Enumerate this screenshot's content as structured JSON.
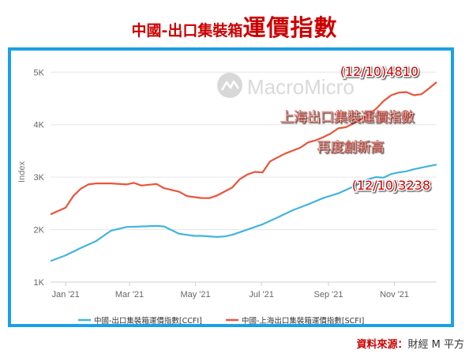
{
  "header": {
    "title_small": "中國-出口集裝箱",
    "title_large": "運價指數"
  },
  "watermark": {
    "text": "MacroMicro"
  },
  "source": {
    "label": "資料來源：",
    "value": "財經 M 平方"
  },
  "annotations": {
    "scfi_value": "(12/10)4810",
    "scfi_name": "上海出口集裝運價指數",
    "scfi_note": "再度創新高",
    "ccfi_value": "(12/10)3238"
  },
  "colors": {
    "ccfi": "#44b4dd",
    "scfi": "#e8553a",
    "frame": "#1aa0e6",
    "title": "#cc0000",
    "annotation_text": "#ffffff",
    "annotation_value": "#cc0000"
  },
  "chart_data": {
    "type": "line",
    "ylabel": "Index",
    "ylim": [
      1000,
      5200
    ],
    "yticks": [
      1000,
      2000,
      3000,
      4000,
      5000
    ],
    "ytick_labels": [
      "1K",
      "2K",
      "3K",
      "4K",
      "5K"
    ],
    "xlim": [
      "2020-12-18",
      "2021-12-10"
    ],
    "xticks": [
      "2021-01-01",
      "2021-03-01",
      "2021-05-01",
      "2021-07-01",
      "2021-09-01",
      "2021-11-01"
    ],
    "xtick_labels": [
      "Jan '21",
      "Mar '21",
      "May '21",
      "Jul '21",
      "Sep '21",
      "Nov '21"
    ],
    "grid": true,
    "legend_position": "bottom",
    "series": [
      {
        "name": "中國-出口集裝箱運價指數[CCFI]",
        "points": [
          [
            "2020-12-18",
            1400
          ],
          [
            "2021-01-01",
            1510
          ],
          [
            "2021-01-15",
            1650
          ],
          [
            "2021-01-29",
            1780
          ],
          [
            "2021-02-05",
            1880
          ],
          [
            "2021-02-12",
            1980
          ],
          [
            "2021-02-26",
            2050
          ],
          [
            "2021-03-12",
            2060
          ],
          [
            "2021-03-26",
            2070
          ],
          [
            "2021-04-02",
            2060
          ],
          [
            "2021-04-09",
            1990
          ],
          [
            "2021-04-16",
            1920
          ],
          [
            "2021-04-23",
            1900
          ],
          [
            "2021-04-30",
            1880
          ],
          [
            "2021-05-07",
            1880
          ],
          [
            "2021-05-21",
            1860
          ],
          [
            "2021-05-28",
            1870
          ],
          [
            "2021-06-04",
            1900
          ],
          [
            "2021-06-18",
            2000
          ],
          [
            "2021-07-02",
            2100
          ],
          [
            "2021-07-16",
            2230
          ],
          [
            "2021-07-30",
            2370
          ],
          [
            "2021-08-13",
            2480
          ],
          [
            "2021-08-27",
            2600
          ],
          [
            "2021-09-10",
            2690
          ],
          [
            "2021-09-24",
            2820
          ],
          [
            "2021-10-08",
            2960
          ],
          [
            "2021-10-15",
            3000
          ],
          [
            "2021-10-22",
            2990
          ],
          [
            "2021-10-29",
            3060
          ],
          [
            "2021-11-05",
            3090
          ],
          [
            "2021-11-12",
            3110
          ],
          [
            "2021-11-19",
            3150
          ],
          [
            "2021-11-26",
            3180
          ],
          [
            "2021-12-03",
            3210
          ],
          [
            "2021-12-10",
            3238
          ]
        ]
      },
      {
        "name": "中國-上海出口集裝箱運價指數[SCFI]",
        "points": [
          [
            "2020-12-18",
            2290
          ],
          [
            "2021-01-01",
            2420
          ],
          [
            "2021-01-08",
            2640
          ],
          [
            "2021-01-15",
            2780
          ],
          [
            "2021-01-22",
            2860
          ],
          [
            "2021-01-29",
            2880
          ],
          [
            "2021-02-12",
            2880
          ],
          [
            "2021-02-26",
            2860
          ],
          [
            "2021-03-05",
            2890
          ],
          [
            "2021-03-12",
            2840
          ],
          [
            "2021-03-26",
            2870
          ],
          [
            "2021-04-02",
            2790
          ],
          [
            "2021-04-16",
            2720
          ],
          [
            "2021-04-23",
            2640
          ],
          [
            "2021-05-07",
            2600
          ],
          [
            "2021-05-14",
            2600
          ],
          [
            "2021-05-21",
            2650
          ],
          [
            "2021-06-04",
            2800
          ],
          [
            "2021-06-11",
            2960
          ],
          [
            "2021-06-18",
            3050
          ],
          [
            "2021-06-25",
            3100
          ],
          [
            "2021-07-02",
            3090
          ],
          [
            "2021-07-09",
            3300
          ],
          [
            "2021-07-23",
            3450
          ],
          [
            "2021-08-06",
            3560
          ],
          [
            "2021-08-13",
            3660
          ],
          [
            "2021-08-20",
            3700
          ],
          [
            "2021-08-27",
            3760
          ],
          [
            "2021-09-03",
            3830
          ],
          [
            "2021-09-10",
            3930
          ],
          [
            "2021-09-17",
            3950
          ],
          [
            "2021-09-24",
            4020
          ],
          [
            "2021-10-01",
            4100
          ],
          [
            "2021-10-08",
            4190
          ],
          [
            "2021-10-15",
            4300
          ],
          [
            "2021-10-22",
            4450
          ],
          [
            "2021-10-29",
            4560
          ],
          [
            "2021-11-05",
            4610
          ],
          [
            "2021-11-12",
            4620
          ],
          [
            "2021-11-19",
            4560
          ],
          [
            "2021-11-26",
            4580
          ],
          [
            "2021-12-03",
            4690
          ],
          [
            "2021-12-10",
            4810
          ]
        ]
      }
    ]
  }
}
